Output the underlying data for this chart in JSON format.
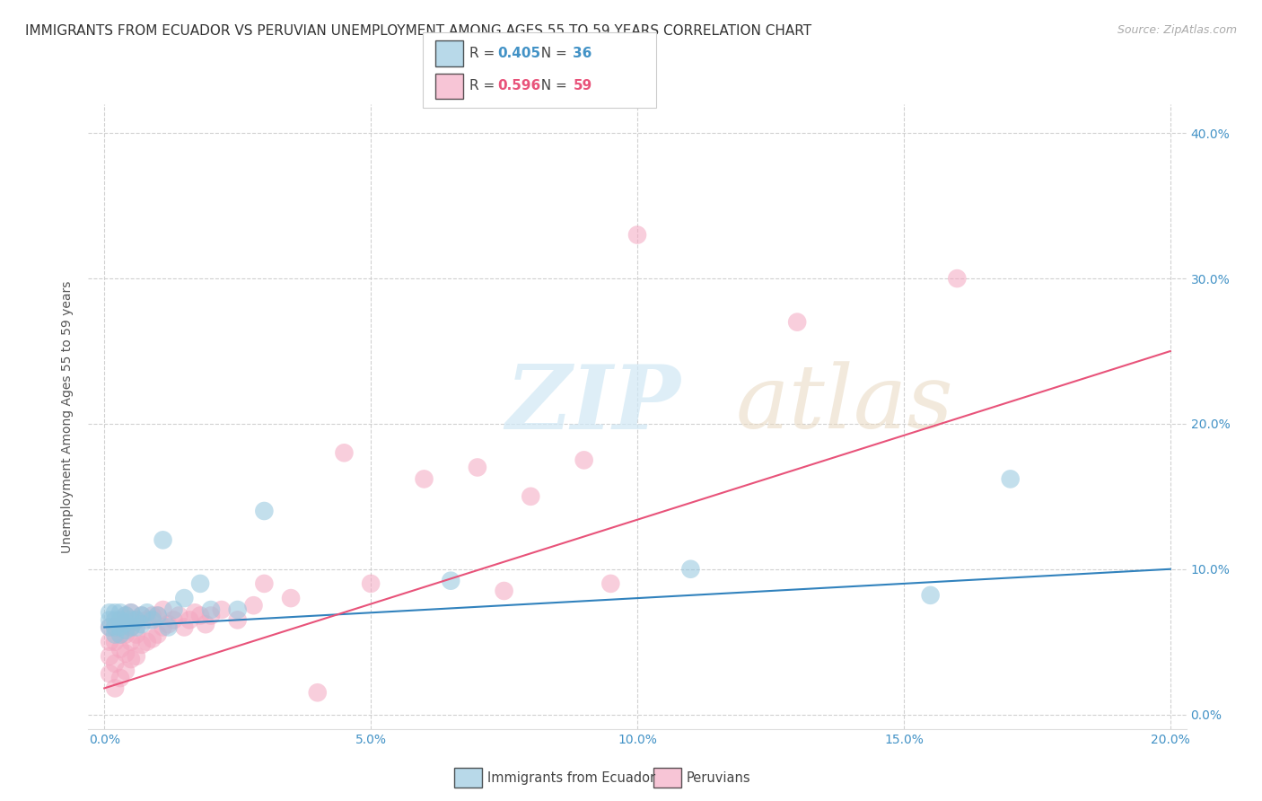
{
  "title": "IMMIGRANTS FROM ECUADOR VS PERUVIAN UNEMPLOYMENT AMONG AGES 55 TO 59 YEARS CORRELATION CHART",
  "source": "Source: ZipAtlas.com",
  "xlabel_vals": [
    0.0,
    0.05,
    0.1,
    0.15,
    0.2
  ],
  "ylabel_vals": [
    0.0,
    0.1,
    0.2,
    0.3,
    0.4
  ],
  "ylabel_label": "Unemployment Among Ages 55 to 59 years",
  "legend_label1": "Immigrants from Ecuador",
  "legend_label2": "Peruvians",
  "R1": "0.405",
  "N1": "36",
  "R2": "0.596",
  "N2": "59",
  "color_blue": "#92c5de",
  "color_pink": "#f4a6c0",
  "color_blue_line": "#3182bd",
  "color_pink_line": "#e8537a",
  "color_text_blue": "#4292c6",
  "color_text_pink": "#e8537a",
  "watermark_zip": "ZIP",
  "watermark_atlas": "atlas",
  "scatter_blue_x": [
    0.001,
    0.001,
    0.001,
    0.002,
    0.002,
    0.002,
    0.002,
    0.003,
    0.003,
    0.003,
    0.003,
    0.004,
    0.004,
    0.004,
    0.005,
    0.005,
    0.005,
    0.006,
    0.006,
    0.007,
    0.007,
    0.008,
    0.009,
    0.01,
    0.011,
    0.012,
    0.013,
    0.015,
    0.018,
    0.02,
    0.025,
    0.03,
    0.065,
    0.11,
    0.155,
    0.17
  ],
  "scatter_blue_y": [
    0.06,
    0.065,
    0.07,
    0.055,
    0.06,
    0.065,
    0.07,
    0.055,
    0.06,
    0.065,
    0.07,
    0.058,
    0.063,
    0.068,
    0.06,
    0.065,
    0.07,
    0.06,
    0.065,
    0.062,
    0.068,
    0.07,
    0.065,
    0.068,
    0.12,
    0.06,
    0.072,
    0.08,
    0.09,
    0.072,
    0.072,
    0.14,
    0.092,
    0.1,
    0.082,
    0.162
  ],
  "scatter_pink_x": [
    0.001,
    0.001,
    0.001,
    0.001,
    0.002,
    0.002,
    0.002,
    0.002,
    0.003,
    0.003,
    0.003,
    0.003,
    0.004,
    0.004,
    0.004,
    0.004,
    0.005,
    0.005,
    0.005,
    0.005,
    0.006,
    0.006,
    0.006,
    0.007,
    0.007,
    0.008,
    0.008,
    0.009,
    0.009,
    0.01,
    0.01,
    0.011,
    0.011,
    0.012,
    0.013,
    0.014,
    0.015,
    0.016,
    0.017,
    0.018,
    0.019,
    0.02,
    0.022,
    0.025,
    0.028,
    0.03,
    0.035,
    0.04,
    0.045,
    0.05,
    0.06,
    0.07,
    0.075,
    0.08,
    0.09,
    0.095,
    0.1,
    0.13,
    0.16
  ],
  "scatter_pink_y": [
    0.028,
    0.04,
    0.05,
    0.06,
    0.018,
    0.035,
    0.05,
    0.06,
    0.025,
    0.045,
    0.055,
    0.065,
    0.03,
    0.042,
    0.055,
    0.068,
    0.038,
    0.05,
    0.06,
    0.07,
    0.04,
    0.055,
    0.065,
    0.048,
    0.068,
    0.05,
    0.065,
    0.052,
    0.068,
    0.055,
    0.068,
    0.06,
    0.072,
    0.062,
    0.065,
    0.068,
    0.06,
    0.065,
    0.07,
    0.068,
    0.062,
    0.068,
    0.072,
    0.065,
    0.075,
    0.09,
    0.08,
    0.015,
    0.18,
    0.09,
    0.162,
    0.17,
    0.085,
    0.15,
    0.175,
    0.09,
    0.33,
    0.27,
    0.3
  ],
  "blue_line_x": [
    0.0,
    0.2
  ],
  "blue_line_y": [
    0.06,
    0.1
  ],
  "pink_line_x": [
    0.0,
    0.2
  ],
  "pink_line_y": [
    0.018,
    0.25
  ],
  "xlim": [
    -0.003,
    0.203
  ],
  "ylim": [
    -0.01,
    0.42
  ],
  "background_color": "#ffffff",
  "grid_color": "#cccccc",
  "title_fontsize": 11,
  "axis_label_fontsize": 10,
  "tick_fontsize": 10,
  "source_fontsize": 9
}
